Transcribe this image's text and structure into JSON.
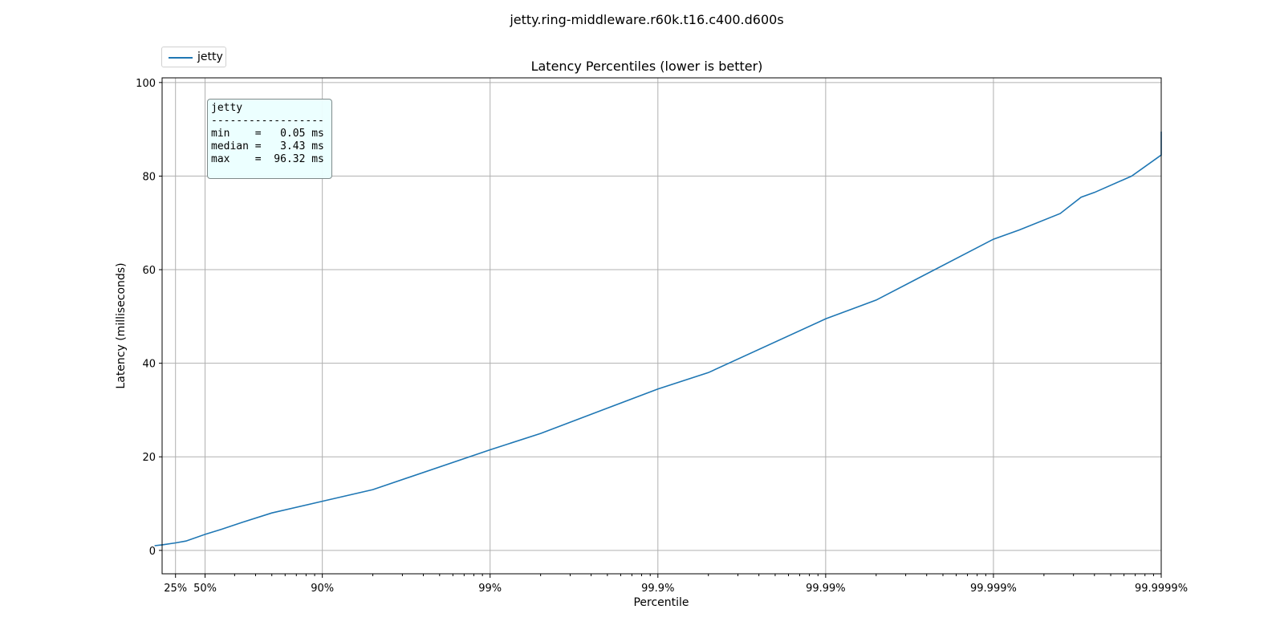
{
  "figure_title": "jetty.ring-middleware.r60k.t16.c400.d600s",
  "chart_data": {
    "type": "line",
    "title": "Latency Percentiles (lower is better)",
    "xlabel": "Percentile",
    "ylabel": "Latency (milliseconds)",
    "x_scale": "log of 1/(1-percentile)",
    "x_ticks": [
      "25%",
      "50%",
      "90%",
      "99%",
      "99.9%",
      "99.99%",
      "99.999%",
      "99.9999%"
    ],
    "x_tick_values": [
      25,
      50,
      90,
      99,
      99.9,
      99.99,
      99.999,
      99.9999
    ],
    "y_ticks": [
      0,
      20,
      40,
      60,
      80,
      100
    ],
    "ylim": [
      -5,
      101
    ],
    "grid": true,
    "legend_position": "top-left",
    "series": [
      {
        "name": "jetty",
        "color": "#1f77b4",
        "points": [
          [
            0,
            1.0
          ],
          [
            10,
            1.2
          ],
          [
            25,
            1.6
          ],
          [
            35,
            2.0
          ],
          [
            50,
            3.43
          ],
          [
            60,
            4.5
          ],
          [
            70,
            6.0
          ],
          [
            80,
            8.0
          ],
          [
            90,
            10.5
          ],
          [
            95,
            13.0
          ],
          [
            99,
            21.5
          ],
          [
            99.5,
            25.0
          ],
          [
            99.9,
            34.5
          ],
          [
            99.95,
            38.0
          ],
          [
            99.99,
            49.5
          ],
          [
            99.995,
            53.5
          ],
          [
            99.999,
            66.5
          ],
          [
            99.9993,
            68.5
          ],
          [
            99.9996,
            72.0
          ],
          [
            99.9997,
            75.5
          ],
          [
            99.99975,
            76.5
          ],
          [
            99.99985,
            80.0
          ],
          [
            99.9999,
            84.5
          ],
          [
            99.9999,
            89.5
          ]
        ]
      }
    ],
    "stats_box": {
      "header": "jetty",
      "divider": "------------------",
      "lines": [
        "min    =   0.05 ms",
        "median =   3.43 ms",
        "max    =  96.32 ms"
      ]
    }
  }
}
